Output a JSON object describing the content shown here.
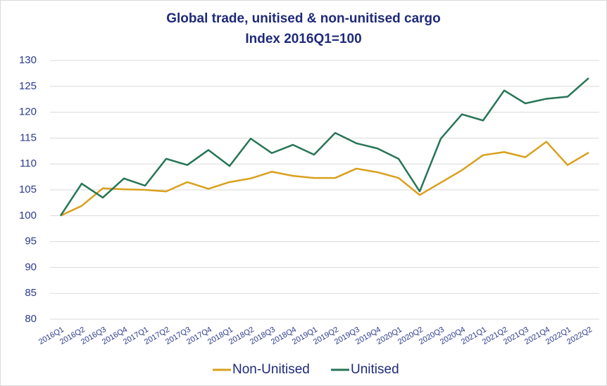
{
  "chart_data": {
    "type": "line",
    "title": "Global trade, unitised & non-unitised cargo",
    "subtitle": "Index 2016Q1=100",
    "categories": [
      "2016Q1",
      "2016Q2",
      "2016Q3",
      "2016Q4",
      "2017Q1",
      "2017Q2",
      "2017Q3",
      "2017Q4",
      "2018Q1",
      "2018Q2",
      "2018Q3",
      "2018Q4",
      "2019Q1",
      "2019Q2",
      "2019Q3",
      "2019Q4",
      "2020Q1",
      "2020Q2",
      "2020Q3",
      "2020Q4",
      "2021Q1",
      "2021Q2",
      "2021Q3",
      "2021Q4",
      "2022Q1",
      "2022Q2"
    ],
    "series": [
      {
        "name": "Non-Unitised",
        "color": "#d9a01c",
        "values": [
          100,
          101.9,
          105.3,
          105.1,
          105.0,
          104.7,
          106.5,
          105.2,
          106.5,
          107.2,
          108.5,
          107.7,
          107.3,
          107.3,
          109.1,
          108.4,
          107.3,
          104.0,
          106.4,
          108.8,
          111.7,
          112.3,
          111.3,
          114.3,
          109.8,
          112.2
        ]
      },
      {
        "name": "Unitised",
        "color": "#277556",
        "values": [
          100,
          106.2,
          103.5,
          107.2,
          105.8,
          111.0,
          109.8,
          112.7,
          109.6,
          114.9,
          112.1,
          113.7,
          111.8,
          116.0,
          114.0,
          113.0,
          111.0,
          104.7,
          114.9,
          119.6,
          118.4,
          124.2,
          121.7,
          122.6,
          123.0,
          126.6
        ]
      }
    ],
    "ylim": [
      80,
      130
    ],
    "yticks": [
      80,
      85,
      90,
      95,
      100,
      105,
      110,
      115,
      120,
      125,
      130
    ],
    "grid": true,
    "legend": "bottom"
  }
}
